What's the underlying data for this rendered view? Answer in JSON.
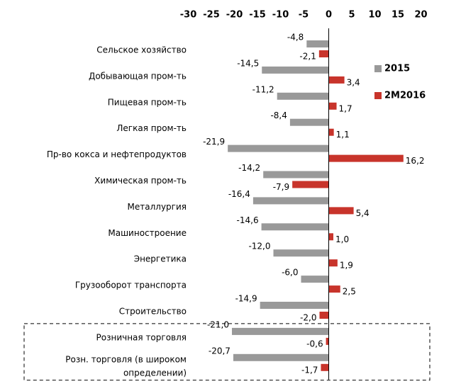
{
  "chart_data": {
    "type": "bar",
    "orientation": "horizontal",
    "xlim": [
      -30,
      20
    ],
    "ticks": [
      "-30",
      "-25",
      "-20",
      "-15",
      "-10",
      "-5",
      "0",
      "5",
      "10",
      "15",
      "20"
    ],
    "tick_values": [
      -30,
      -25,
      -20,
      -15,
      -10,
      -5,
      0,
      5,
      10,
      15,
      20
    ],
    "categories": [
      [
        "Сельское хозяйство"
      ],
      [
        "Добывающая пром-ть"
      ],
      [
        "Пищевая пром-ть"
      ],
      [
        "Легкая пром-ть"
      ],
      [
        "Пр-во кокса и нефтепродуктов"
      ],
      [
        "Химическая пром-ть"
      ],
      [
        "Металлургия"
      ],
      [
        "Машиностроение"
      ],
      [
        "Энергетика"
      ],
      [
        "Грузооборот транспорта"
      ],
      [
        "Строительство"
      ],
      [
        "Розничная торговля"
      ],
      [
        "Розн. торговля (в широком",
        "определении)"
      ]
    ],
    "series": [
      {
        "name": "2015",
        "color": "#999999",
        "values": [
          -4.8,
          -14.5,
          -11.2,
          -8.4,
          -21.9,
          -14.2,
          -16.4,
          -14.6,
          -12.0,
          -6.0,
          -14.9,
          -21.0,
          -20.7
        ],
        "labels": [
          "-4,8",
          "-14,5",
          "-11,2",
          "-8,4",
          "-21,9",
          "-14,2",
          "-16,4",
          "-14,6",
          "-12,0",
          "-6,0",
          "-14,9",
          "-21,0",
          "-20,7"
        ]
      },
      {
        "name": "2М2016",
        "color": "#c8342b",
        "values": [
          -2.1,
          3.4,
          1.7,
          1.1,
          16.2,
          -7.9,
          5.4,
          1.0,
          1.9,
          2.5,
          -2.0,
          -0.6,
          -1.7
        ],
        "labels": [
          "-2,1",
          "3,4",
          "1,7",
          "1,1",
          "16,2",
          "-7,9",
          "5,4",
          "1,0",
          "1,9",
          "2,5",
          "-2,0",
          "-0,6",
          "-1,7"
        ]
      }
    ],
    "highlight_group": [
      11,
      12
    ],
    "legend_position": "right"
  }
}
